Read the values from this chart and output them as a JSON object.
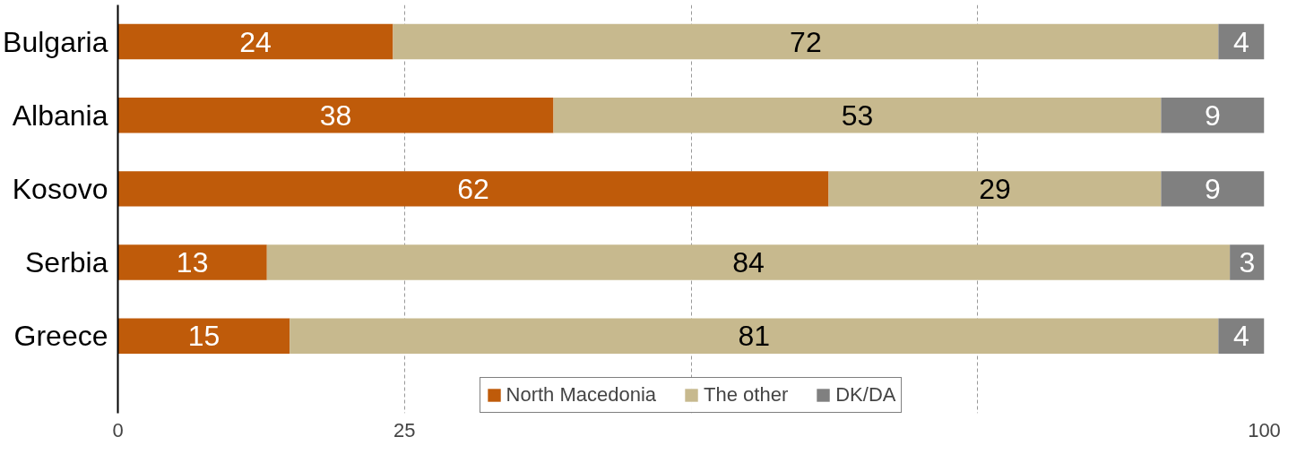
{
  "chart_data": {
    "type": "bar",
    "orientation": "horizontal",
    "stacked": true,
    "categories": [
      "Bulgaria",
      "Albania",
      "Kosovo",
      "Serbia",
      "Greece"
    ],
    "series": [
      {
        "name": "North Macedonia",
        "color": "#bf5b0a",
        "values": [
          24,
          38,
          62,
          13,
          15
        ]
      },
      {
        "name": "The other",
        "color": "#c7b98e",
        "values": [
          72,
          53,
          29,
          84,
          81
        ]
      },
      {
        "name": "DK/DA",
        "color": "#808080",
        "values": [
          4,
          9,
          9,
          3,
          4
        ]
      }
    ],
    "xlim": [
      0,
      100
    ],
    "xticks": [
      0,
      25,
      {
        "value": 50,
        "label": null
      },
      {
        "value": 75,
        "label": null
      },
      100
    ],
    "grid": "x",
    "legend": "bottom",
    "data_labels": true
  }
}
